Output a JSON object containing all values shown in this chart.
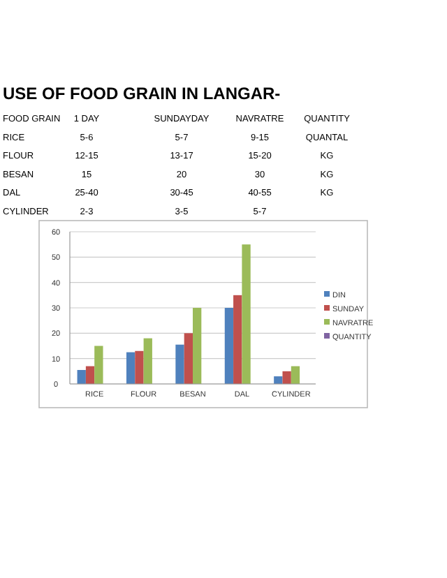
{
  "chart_data": {
    "type": "bar",
    "title": "USE OF FOOD GRAIN IN LANGAR-",
    "annotations": [
      "FOOD GRAIN",
      "1 DAY",
      "SUNDAYDAY",
      "NAVRATRE",
      "QUANTITY",
      "RICE",
      "5-6",
      "5-7",
      "9-15",
      "QUANTAL",
      "FLOUR",
      "12-15",
      "13-17",
      "15-20",
      "KG",
      "BESAN",
      "15",
      "20",
      "30",
      "KG",
      "DAL",
      "25-40",
      "30-45",
      "40-55",
      "KG",
      "CYLINDER",
      "2-3",
      "3-5",
      "5-7"
    ],
    "categories": [
      "RICE",
      "FLOUR",
      "BESAN",
      "DAL",
      "CYLINDER"
    ],
    "series": [
      {
        "name": "DIN",
        "color": "#4f81bd",
        "values": [
          5.5,
          12.5,
          15.5,
          30,
          3
        ]
      },
      {
        "name": "SUNDAY",
        "color": "#c0504d",
        "values": [
          7,
          13,
          20,
          35,
          5
        ]
      },
      {
        "name": "NAVRATRE",
        "color": "#9bbb59",
        "values": [
          15,
          18,
          30,
          55,
          7
        ]
      },
      {
        "name": "QUANTITY",
        "color": "#8064a2",
        "values": [
          null,
          null,
          null,
          null,
          null
        ]
      }
    ],
    "ylim": [
      0,
      60
    ],
    "yticks": [
      0,
      10,
      20,
      30,
      40,
      50,
      60
    ],
    "grid": "y",
    "legend": "right"
  }
}
